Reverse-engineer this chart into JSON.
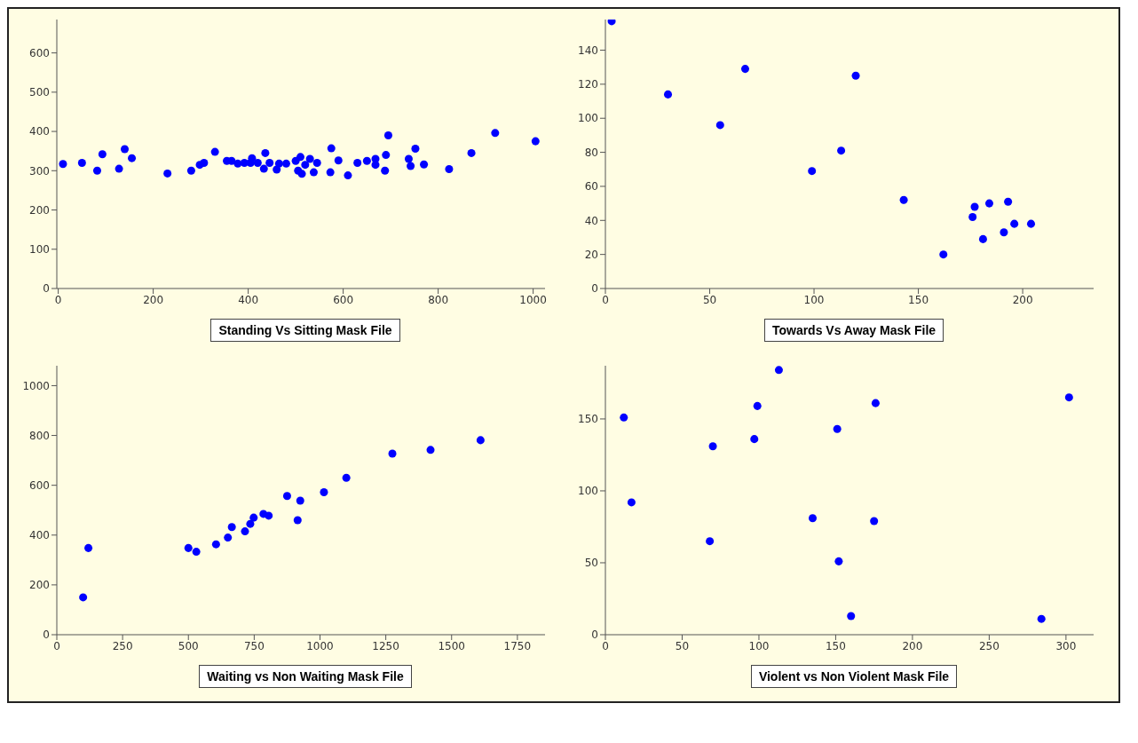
{
  "chart_data": [
    {
      "type": "scatter",
      "xlabel": "Standing Vs Sitting Mask File",
      "marker": "circle",
      "grid": false,
      "xlim": [
        -3,
        1025
      ],
      "ylim": [
        0,
        685
      ],
      "xticks": [
        0,
        200,
        400,
        600,
        800,
        1000
      ],
      "yticks": [
        0,
        100,
        200,
        300,
        400,
        500,
        600
      ],
      "series": [
        {
          "color": "#0000ff",
          "x": [
            10,
            50,
            82,
            93,
            128,
            140,
            155,
            230,
            280,
            298,
            307,
            330,
            355,
            365,
            378,
            392,
            405,
            408,
            420,
            433,
            436,
            445,
            460,
            465,
            480,
            500,
            505,
            510,
            513,
            520,
            530,
            538,
            545,
            575,
            573,
            590,
            610,
            630,
            650,
            668,
            668,
            688,
            690,
            695,
            738,
            742,
            752,
            770,
            823,
            870,
            920,
            1005
          ],
          "values": [
            317,
            320,
            300,
            342,
            305,
            355,
            332,
            293,
            300,
            315,
            320,
            348,
            325,
            325,
            318,
            320,
            320,
            332,
            320,
            305,
            345,
            320,
            303,
            318,
            318,
            325,
            300,
            335,
            292,
            315,
            330,
            296,
            320,
            357,
            296,
            326,
            288,
            320,
            325,
            330,
            315,
            300,
            340,
            390,
            330,
            312,
            356,
            316,
            304,
            345,
            396,
            375
          ]
        }
      ]
    },
    {
      "type": "scatter",
      "xlabel": "Towards Vs Away Mask File",
      "marker": "circle",
      "grid": false,
      "xlim": [
        0,
        234
      ],
      "ylim": [
        0,
        158
      ],
      "xticks": [
        0,
        50,
        100,
        150,
        200
      ],
      "yticks": [
        0,
        20,
        40,
        60,
        80,
        100,
        120,
        140
      ],
      "series": [
        {
          "color": "#0000ff",
          "x": [
            3,
            30,
            55,
            67,
            99,
            113,
            120,
            143,
            162,
            176,
            177,
            181,
            184,
            191,
            193,
            196,
            204
          ],
          "values": [
            157,
            114,
            96,
            129,
            69,
            81,
            125,
            52,
            20,
            42,
            48,
            29,
            50,
            33,
            51,
            38,
            38
          ]
        }
      ]
    },
    {
      "type": "scatter",
      "xlabel": "Waiting vs Non Waiting Mask File",
      "marker": "circle",
      "grid": false,
      "xlim": [
        0,
        1855
      ],
      "ylim": [
        0,
        1080
      ],
      "xticks": [
        0,
        250,
        500,
        750,
        1000,
        1250,
        1500,
        1750
      ],
      "yticks": [
        0,
        200,
        400,
        600,
        800,
        1000
      ],
      "series": [
        {
          "color": "#0000ff",
          "x": [
            100,
            120,
            500,
            530,
            605,
            650,
            665,
            715,
            735,
            748,
            785,
            805,
            875,
            915,
            925,
            1015,
            1100,
            1275,
            1420,
            1610
          ],
          "values": [
            150,
            348,
            348,
            333,
            363,
            390,
            432,
            415,
            445,
            470,
            485,
            478,
            557,
            460,
            538,
            572,
            630,
            727,
            742,
            781
          ]
        }
      ]
    },
    {
      "type": "scatter",
      "xlabel": "Violent vs Non Violent Mask File",
      "marker": "circle",
      "grid": false,
      "xlim": [
        0,
        318
      ],
      "ylim": [
        0,
        187
      ],
      "xticks": [
        0,
        50,
        100,
        150,
        200,
        250,
        300
      ],
      "yticks": [
        0,
        50,
        100,
        150
      ],
      "series": [
        {
          "color": "#0000ff",
          "x": [
            12,
            17,
            68,
            70,
            97,
            99,
            113,
            135,
            151,
            152,
            160,
            175,
            176,
            284,
            302
          ],
          "values": [
            151,
            92,
            65,
            131,
            136,
            159,
            184,
            81,
            143,
            51,
            13,
            79,
            161,
            11,
            165
          ]
        }
      ]
    }
  ]
}
